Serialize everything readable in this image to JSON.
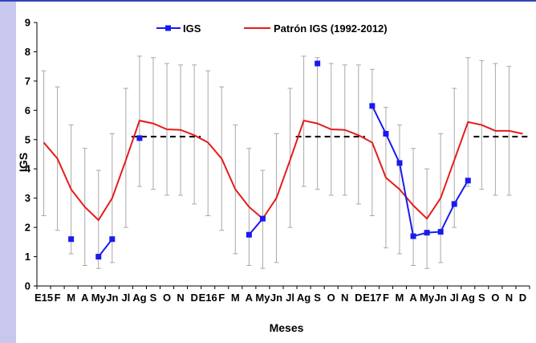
{
  "chart_data": {
    "type": "line",
    "xlabel": "Meses",
    "ylabel": "IGS",
    "ylim": [
      0,
      9
    ],
    "yticks": [
      "0",
      "1",
      "2",
      "3",
      "4",
      "5",
      "6",
      "7",
      "8",
      "9"
    ],
    "categories": [
      "E15",
      "F",
      "M",
      "A",
      "My",
      "Jn",
      "Jl",
      "Ag",
      "S",
      "O",
      "N",
      "D",
      "E16",
      "F",
      "M",
      "A",
      "My",
      "Jn",
      "Jl",
      "Ag",
      "S",
      "O",
      "N",
      "D",
      "E17",
      "F",
      "M",
      "A",
      "My",
      "Jn",
      "Jl",
      "Ag",
      "S",
      "O",
      "N",
      "D"
    ],
    "series": [
      {
        "name": "IGS",
        "color": "#1a1aee",
        "values": [
          null,
          null,
          1.6,
          null,
          1.0,
          1.6,
          null,
          5.05,
          null,
          null,
          null,
          null,
          null,
          null,
          null,
          1.75,
          2.3,
          null,
          null,
          null,
          7.6,
          null,
          null,
          null,
          6.15,
          5.2,
          4.2,
          1.7,
          1.82,
          1.85,
          2.8,
          3.6,
          null,
          null,
          null,
          null
        ]
      },
      {
        "name": "Patrón IGS (1992-2012)",
        "color": "#e51c1c",
        "values": [
          4.9,
          4.35,
          3.3,
          2.7,
          2.25,
          3.0,
          4.3,
          5.65,
          5.55,
          5.35,
          5.33,
          5.15,
          4.9,
          4.35,
          3.3,
          2.7,
          2.3,
          3.0,
          4.3,
          5.65,
          5.55,
          5.35,
          5.33,
          5.15,
          4.9,
          3.7,
          3.3,
          2.75,
          2.3,
          3.0,
          4.3,
          5.6,
          5.5,
          5.3,
          5.3,
          5.2
        ],
        "error_low": [
          2.4,
          1.9,
          1.1,
          0.7,
          0.6,
          0.8,
          2.0,
          3.4,
          3.3,
          3.1,
          3.1,
          2.8,
          2.4,
          1.9,
          1.1,
          0.7,
          0.6,
          0.8,
          2.0,
          3.4,
          3.3,
          3.1,
          3.1,
          2.8,
          2.4,
          1.3,
          1.1,
          0.7,
          0.6,
          0.8,
          2.0,
          3.4,
          3.3,
          3.1,
          3.1,
          null
        ],
        "error_high": [
          7.35,
          6.8,
          5.5,
          4.7,
          3.95,
          5.2,
          6.75,
          7.85,
          7.8,
          7.6,
          7.55,
          7.55,
          7.35,
          6.8,
          5.5,
          4.7,
          3.95,
          5.2,
          6.75,
          7.85,
          7.8,
          7.6,
          7.55,
          7.55,
          7.4,
          6.1,
          5.5,
          4.7,
          4.0,
          5.2,
          6.75,
          7.8,
          7.7,
          7.6,
          7.5,
          null
        ]
      }
    ],
    "reference_lines": [
      {
        "value": 5.1,
        "from": "Ag",
        "to": "D",
        "period": 1,
        "style": "dashed",
        "color": "#000000"
      },
      {
        "value": 5.1,
        "from": "Ag",
        "to": "D",
        "period": 2,
        "style": "dashed",
        "color": "#000000"
      },
      {
        "value": 5.1,
        "from": "S",
        "to": "D",
        "period": 3,
        "style": "dashed",
        "color": "#000000"
      }
    ],
    "legend_position": "top-center"
  }
}
